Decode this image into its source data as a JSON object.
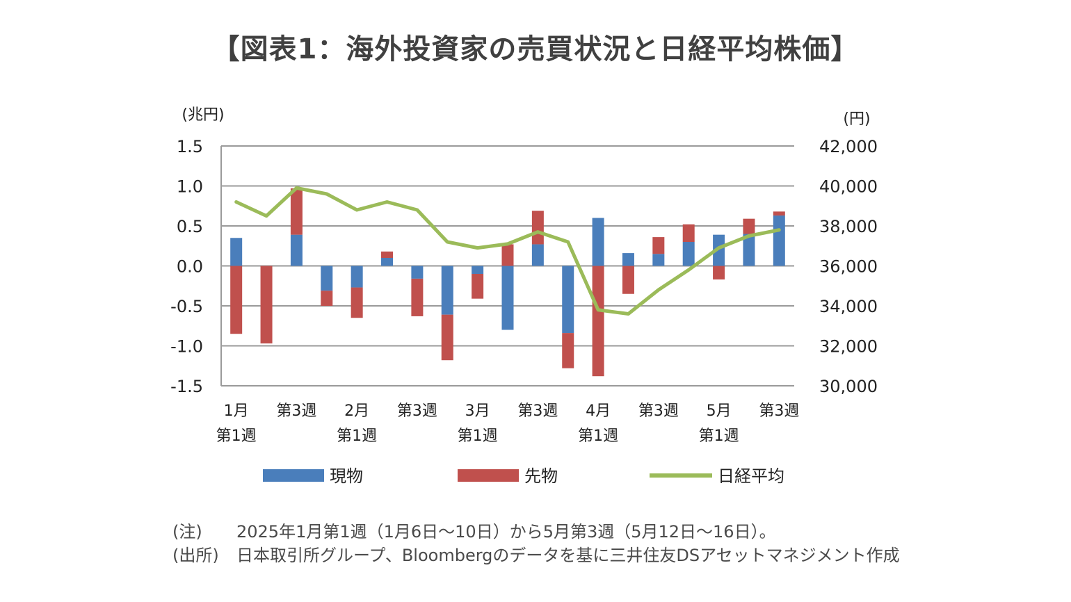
{
  "title": "【図表1：海外投資家の売買状況と日経平均株価】",
  "chart_data": {
    "type": "bar",
    "title": "【図表1：海外投資家の売買状況と日経平均株価】",
    "left_axis": {
      "unit_label": "(兆円)",
      "range": [
        -1.5,
        1.5
      ],
      "ticks": [
        "1.5",
        "1.0",
        "0.5",
        "0.0",
        "-0.5",
        "-1.0",
        "-1.5"
      ]
    },
    "right_axis": {
      "unit_label": "(円)",
      "range": [
        30000,
        42000
      ],
      "ticks": [
        "42,000",
        "40,000",
        "38,000",
        "36,000",
        "34,000",
        "32,000",
        "30,000"
      ]
    },
    "x_tick_labels": [
      {
        "line1": "1月",
        "line2": "第1週",
        "index": 0
      },
      {
        "line1": "第3週",
        "line2": "",
        "index": 2
      },
      {
        "line1": "2月",
        "line2": "第1週",
        "index": 4
      },
      {
        "line1": "第3週",
        "line2": "",
        "index": 6
      },
      {
        "line1": "3月",
        "line2": "第1週",
        "index": 8
      },
      {
        "line1": "第3週",
        "line2": "",
        "index": 10
      },
      {
        "line1": "4月",
        "line2": "第1週",
        "index": 12
      },
      {
        "line1": "第3週",
        "line2": "",
        "index": 14
      },
      {
        "line1": "5月",
        "line2": "第1週",
        "index": 16
      },
      {
        "line1": "第3週",
        "line2": "",
        "index": 18
      }
    ],
    "grid": true,
    "legend_position": "bottom",
    "series": [
      {
        "name": "現物",
        "type": "stacked-bar",
        "axis": "left",
        "color": "#4a7ebb",
        "values": [
          0.35,
          0.0,
          0.39,
          -0.31,
          -0.27,
          0.1,
          -0.16,
          -0.61,
          -0.1,
          -0.8,
          0.27,
          -0.84,
          0.6,
          0.16,
          0.15,
          0.3,
          0.39,
          0.4,
          0.63
        ]
      },
      {
        "name": "先物",
        "type": "stacked-bar",
        "axis": "left",
        "color": "#c0504d",
        "values": [
          -0.85,
          -0.97,
          0.58,
          -0.19,
          -0.38,
          0.08,
          -0.47,
          -0.57,
          -0.31,
          0.27,
          0.42,
          -0.44,
          -1.38,
          -0.35,
          0.21,
          0.22,
          -0.17,
          0.19,
          0.05
        ]
      },
      {
        "name": "日経平均",
        "type": "line",
        "axis": "right",
        "color": "#9bbb59",
        "values": [
          39200,
          38500,
          39900,
          39600,
          38800,
          39200,
          38800,
          37200,
          36900,
          37100,
          37700,
          37200,
          33800,
          33600,
          34800,
          35800,
          36900,
          37500,
          37800
        ]
      }
    ]
  },
  "legend": {
    "spot": "現物",
    "futures": "先物",
    "nikkei": "日経平均"
  },
  "notes": {
    "note_label": "(注)",
    "note_text": "2025年1月第1週（1月6日～10日）から5月第3週（5月12日～16日）。",
    "source_label": "(出所)",
    "source_text": "日本取引所グループ、Bloombergのデータを基に三井住友DSアセットマネジメント作成"
  }
}
